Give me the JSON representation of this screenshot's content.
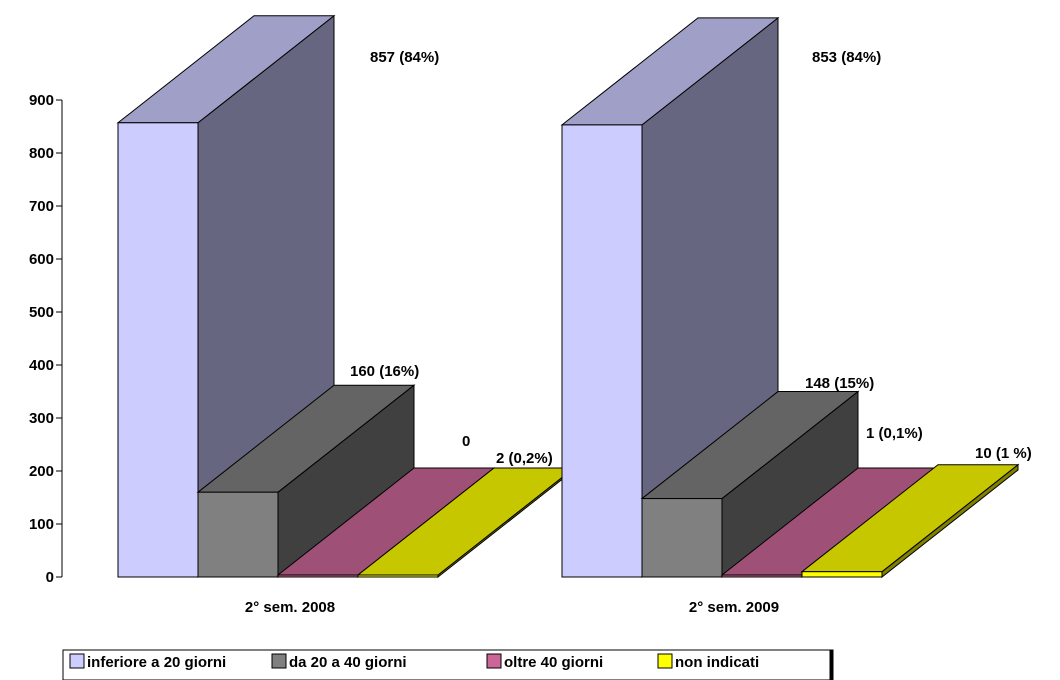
{
  "chart_data": {
    "type": "bar",
    "title": "",
    "xlabel": "",
    "ylabel": "",
    "ylim": [
      0,
      900
    ],
    "yticks": [
      0,
      100,
      200,
      300,
      400,
      500,
      600,
      700,
      800,
      900
    ],
    "grid": false,
    "legend_position": "bottom",
    "categories": [
      "2° sem. 2008",
      "2° sem. 2009"
    ],
    "series": [
      {
        "name": "inferiore a 20 giorni",
        "values": [
          857,
          853
        ],
        "labels": [
          "857 (84%)",
          "853 (84%)"
        ],
        "color": "#CCCCFF"
      },
      {
        "name": "da 20 a 40 giorni",
        "values": [
          160,
          148
        ],
        "labels": [
          "160 (16%)",
          "148 (15%)"
        ],
        "color": "#808080"
      },
      {
        "name": "oltre 40 giorni",
        "values": [
          0,
          1
        ],
        "labels": [
          "0",
          "1 (0,1%)"
        ],
        "color": "#CC6699"
      },
      {
        "name": "non indicati",
        "values": [
          2,
          10
        ],
        "labels": [
          "2 (0,2%)",
          "10 (1 %)"
        ],
        "color": "#FFFF00"
      }
    ]
  }
}
